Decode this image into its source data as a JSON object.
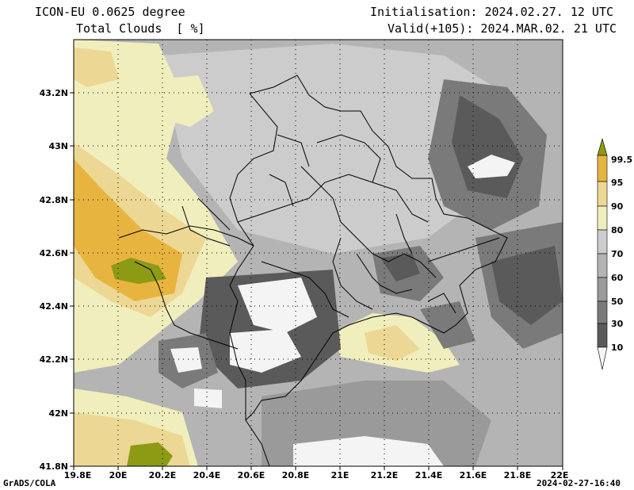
{
  "header": {
    "model": "ICON-EU 0.0625 degree",
    "field": "Total Clouds  [ %]",
    "init": "Initialisation: 2024.02.27. 12 UTC",
    "valid": "Valid(+105): 2024.MAR.02. 21 UTC"
  },
  "footer": {
    "credit": "GrADS/COLA",
    "timestamp": "2024-02-27-16:40"
  },
  "map": {
    "lat_ticks": [
      "41.8N",
      "42N",
      "42.2N",
      "42.4N",
      "42.6N",
      "42.8N",
      "43N",
      "43.2N"
    ],
    "lon_ticks": [
      "19.8E",
      "20E",
      "20.2E",
      "20.4E",
      "20.6E",
      "20.8E",
      "21E",
      "21.2E",
      "21.4E",
      "21.6E",
      "21.8E",
      "22E"
    ]
  },
  "colorbar": {
    "labels": [
      "99.5",
      "95",
      "90",
      "80",
      "70",
      "60",
      "50",
      "30",
      "10"
    ],
    "colors": {
      "c0": "#f4f4f4",
      "c10": "#5a5a5a",
      "c30": "#7a7a7a",
      "c50": "#9a9a9a",
      "c60": "#b4b4b4",
      "c70": "#cccccc",
      "c80": "#f0eebc",
      "c90": "#ecd794",
      "c95": "#e8b440",
      "c995": "#8c9a14"
    }
  }
}
